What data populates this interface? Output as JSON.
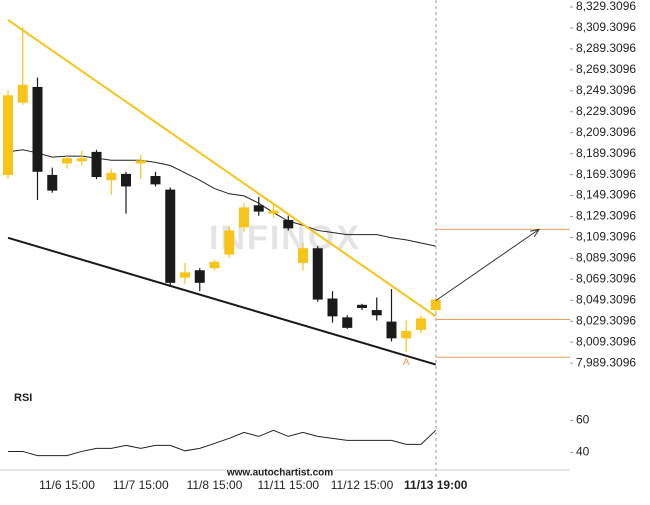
{
  "chart_data": [
    {
      "type": "candlestick",
      "categories": [
        null,
        null,
        null,
        null,
        "11/6 15:00",
        null,
        null,
        null,
        null,
        "11/7 15:00",
        null,
        null,
        null,
        null,
        "11/8 15:00",
        null,
        null,
        null,
        null,
        "11/11 15:00",
        null,
        null,
        null,
        null,
        "11/12 15:00",
        null,
        null,
        null,
        null,
        "11/13 19:00"
      ],
      "open": [
        8169,
        8238,
        8253,
        8169,
        8180,
        8182,
        8191,
        8164,
        8170,
        8180,
        8168,
        8155,
        8071,
        8078,
        8080,
        8093,
        8119,
        8140,
        8132,
        8126,
        8085,
        8099,
        8051,
        8033,
        8045,
        8040,
        8029,
        8013,
        8021,
        8040
      ],
      "high": [
        8250,
        8310,
        8262,
        8176,
        8187,
        8192,
        8193,
        8175,
        8172,
        8188,
        8172,
        8157,
        8085,
        8080,
        8088,
        8120,
        8142,
        8148,
        8140,
        8130,
        8104,
        8101,
        8058,
        8035,
        8046,
        8052,
        8060,
        8030,
        8035,
        8052
      ],
      "low": [
        8165,
        8236,
        8145,
        8152,
        8175,
        8178,
        8165,
        8150,
        8132,
        8165,
        8158,
        8062,
        8065,
        8058,
        8078,
        8090,
        8115,
        8130,
        8128,
        8116,
        8078,
        8048,
        8028,
        8022,
        8040,
        8030,
        8010,
        8000,
        8018,
        8038
      ],
      "close": [
        8245,
        8255,
        8172,
        8154,
        8185,
        8185,
        8167,
        8171,
        8158,
        8183,
        8160,
        8066,
        8076,
        8066,
        8086,
        8116,
        8138,
        8134,
        8135,
        8118,
        8099,
        8050,
        8034,
        8023,
        8042,
        8035,
        8013,
        8020,
        8032,
        8050
      ],
      "up_color": "#f7c41a",
      "down_color": "#1a1a1a",
      "ma": {
        "color": "#222222",
        "values": [
          8191,
          8193,
          8190,
          8186,
          8187,
          8187,
          8185,
          8183,
          8183,
          8183,
          8181,
          8178,
          8171,
          8164,
          8156,
          8151,
          8149,
          8142,
          8133,
          8125,
          8121,
          8116,
          8114,
          8112,
          8112,
          8112,
          8109,
          8107,
          8104,
          8101
        ]
      },
      "trendlines": [
        {
          "color": "#f7c41a",
          "from": [
            0,
            8317
          ],
          "to": [
            29,
            8034
          ]
        },
        {
          "color": "#1a1a1a",
          "from": [
            0,
            8109
          ],
          "to": [
            29,
            7988
          ]
        }
      ],
      "levels": [
        8117,
        8031,
        7995
      ],
      "level_color": "#e8a060",
      "arrow": {
        "from": [
          29,
          8049
        ],
        "to": [
          36,
          8117
        ]
      },
      "annotation": {
        "text": "A",
        "x": 27,
        "value": 7990
      },
      "watermark": "INFINOX",
      "source": "www.autochartist.com",
      "ylim": [
        7978,
        8336
      ],
      "yticks": [
        {
          "value": 8329.3096,
          "label": "8,329.3096"
        },
        {
          "value": 8309.3096,
          "label": "8,309.3096"
        },
        {
          "value": 8289.3096,
          "label": "8,289.3096"
        },
        {
          "value": 8269.3096,
          "label": "8,269.3096"
        },
        {
          "value": 8249.3096,
          "label": "8,249.3096"
        },
        {
          "value": 8229.3096,
          "label": "8,229.3096"
        },
        {
          "value": 8209.3096,
          "label": "8,209.3096"
        },
        {
          "value": 8189.3096,
          "label": "8,189.3096"
        },
        {
          "value": 8169.3096,
          "label": "8,169.3096"
        },
        {
          "value": 8149.3096,
          "label": "8,149.3096"
        },
        {
          "value": 8129.3096,
          "label": "8,129.3096"
        },
        {
          "value": 8109.3096,
          "label": "8,109.3096"
        },
        {
          "value": 8089.3096,
          "label": "8,089.3096"
        },
        {
          "value": 8069.3096,
          "label": "8,069.3096"
        },
        {
          "value": 8049.3096,
          "label": "8,049.3096"
        },
        {
          "value": 8029.3096,
          "label": "8,029.3096"
        },
        {
          "value": 8009.3096,
          "label": "8,009.3096"
        },
        {
          "value": 7989.3096,
          "label": "7,989.3096"
        }
      ]
    },
    {
      "type": "line",
      "title": "RSI",
      "color": "#222222",
      "values": [
        40.6,
        40.6,
        38,
        38,
        38,
        40.6,
        42.5,
        42.5,
        44.4,
        42.5,
        44.4,
        44.4,
        41,
        42.5,
        45.6,
        48.8,
        52.5,
        50,
        53.8,
        50,
        52.5,
        50,
        48.8,
        47.5,
        47.5,
        47.5,
        47.5,
        45,
        45,
        53.8
      ],
      "ylim": [
        29,
        79
      ],
      "yticks": [
        40,
        60
      ]
    }
  ]
}
